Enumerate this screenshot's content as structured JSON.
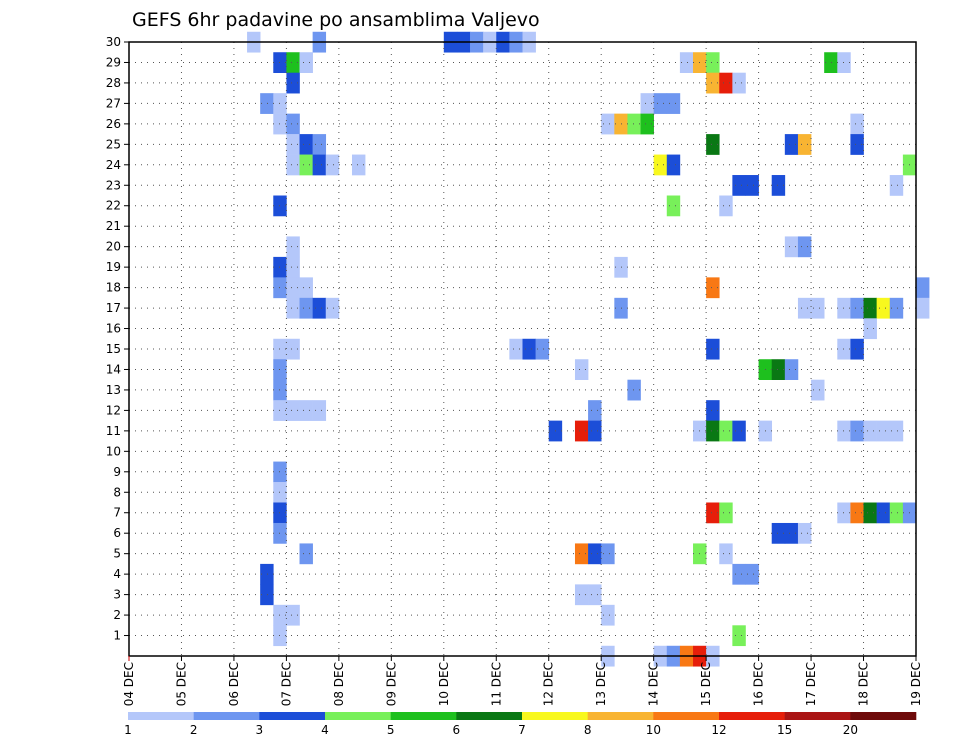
{
  "chart_data": {
    "type": "heatmap",
    "title": "GEFS 6hr padavine po ansamblima Valjevo",
    "y_labels": [
      "1",
      "2",
      "3",
      "4",
      "5",
      "6",
      "7",
      "8",
      "9",
      "10",
      "11",
      "12",
      "13",
      "14",
      "15",
      "16",
      "17",
      "18",
      "19",
      "20",
      "21",
      "22",
      "23",
      "24",
      "25",
      "26",
      "27",
      "28",
      "29",
      "30"
    ],
    "x_labels": [
      "04 DEC",
      "05 DEC",
      "06 DEC",
      "07 DEC",
      "08 DEC",
      "09 DEC",
      "10 DEC",
      "11 DEC",
      "12 DEC",
      "13 DEC",
      "14 DEC",
      "15 DEC",
      "16 DEC",
      "17 DEC",
      "18 DEC",
      "19 DEC"
    ],
    "x_range_days": [
      0,
      15
    ],
    "steps_per_day": 4,
    "y_range": [
      0,
      30
    ],
    "grid": "dotted",
    "legend": {
      "placement": "bottom",
      "thresholds": [
        "1",
        "2",
        "3",
        "4",
        "5",
        "6",
        "7",
        "8",
        "10",
        "12",
        "15",
        "20"
      ],
      "colors": [
        "#b4c7fa",
        "#6e96f0",
        "#1c4ed8",
        "#78f05a",
        "#1ec01e",
        "#0a7814",
        "#f8f81e",
        "#f8b432",
        "#f87814",
        "#e61e0a",
        "#aa1414",
        "#6e0a0a"
      ]
    },
    "cells": [
      [
        30,
        1,
        9
      ],
      [
        30,
        2,
        14
      ],
      [
        30,
        3,
        24
      ],
      [
        30,
        3,
        25
      ],
      [
        30,
        2,
        26
      ],
      [
        30,
        1,
        27
      ],
      [
        30,
        3,
        28
      ],
      [
        30,
        2,
        29
      ],
      [
        30,
        1,
        30
      ],
      [
        29,
        3,
        11
      ],
      [
        29,
        5,
        12
      ],
      [
        29,
        1,
        13
      ],
      [
        29,
        1,
        42
      ],
      [
        29,
        8,
        43
      ],
      [
        29,
        4,
        44
      ],
      [
        29,
        5,
        53
      ],
      [
        29,
        1,
        54
      ],
      [
        28,
        3,
        12
      ],
      [
        28,
        8,
        44
      ],
      [
        28,
        10,
        45
      ],
      [
        28,
        1,
        46
      ],
      [
        27,
        2,
        10
      ],
      [
        27,
        1,
        11
      ],
      [
        27,
        1,
        39
      ],
      [
        27,
        2,
        40
      ],
      [
        27,
        2,
        41
      ],
      [
        26,
        1,
        11
      ],
      [
        26,
        2,
        12
      ],
      [
        26,
        1,
        36
      ],
      [
        26,
        8,
        37
      ],
      [
        26,
        4,
        38
      ],
      [
        26,
        5,
        39
      ],
      [
        26,
        1,
        55
      ],
      [
        25,
        1,
        12
      ],
      [
        25,
        3,
        13
      ],
      [
        25,
        2,
        14
      ],
      [
        25,
        6,
        44
      ],
      [
        25,
        3,
        50
      ],
      [
        25,
        8,
        51
      ],
      [
        25,
        3,
        55
      ],
      [
        24,
        1,
        12
      ],
      [
        24,
        4,
        13
      ],
      [
        24,
        3,
        14
      ],
      [
        24,
        1,
        15
      ],
      [
        24,
        1,
        17
      ],
      [
        24,
        7,
        40
      ],
      [
        24,
        3,
        41
      ],
      [
        24,
        4,
        59
      ],
      [
        23,
        3,
        46
      ],
      [
        23,
        3,
        47
      ],
      [
        23,
        3,
        49
      ],
      [
        23,
        1,
        58
      ],
      [
        22,
        3,
        11
      ],
      [
        22,
        4,
        41
      ],
      [
        22,
        1,
        45
      ],
      [
        20,
        1,
        12
      ],
      [
        20,
        1,
        50
      ],
      [
        20,
        2,
        51
      ],
      [
        19,
        3,
        11
      ],
      [
        19,
        1,
        12
      ],
      [
        19,
        1,
        37
      ],
      [
        18,
        2,
        11
      ],
      [
        18,
        1,
        12
      ],
      [
        18,
        1,
        13
      ],
      [
        18,
        9,
        44
      ],
      [
        18,
        2,
        60
      ],
      [
        17,
        1,
        12
      ],
      [
        17,
        2,
        13
      ],
      [
        17,
        3,
        14
      ],
      [
        17,
        1,
        15
      ],
      [
        17,
        2,
        37
      ],
      [
        17,
        1,
        51
      ],
      [
        17,
        1,
        52
      ],
      [
        17,
        1,
        54
      ],
      [
        17,
        2,
        55
      ],
      [
        17,
        6,
        56
      ],
      [
        17,
        7,
        57
      ],
      [
        17,
        2,
        58
      ],
      [
        17,
        1,
        60
      ],
      [
        16,
        1,
        56
      ],
      [
        15,
        1,
        11
      ],
      [
        15,
        1,
        12
      ],
      [
        15,
        1,
        29
      ],
      [
        15,
        3,
        30
      ],
      [
        15,
        2,
        31
      ],
      [
        15,
        3,
        44
      ],
      [
        15,
        1,
        54
      ],
      [
        15,
        3,
        55
      ],
      [
        14,
        2,
        11
      ],
      [
        14,
        1,
        34
      ],
      [
        14,
        5,
        48
      ],
      [
        14,
        6,
        49
      ],
      [
        14,
        2,
        50
      ],
      [
        13,
        2,
        11
      ],
      [
        13,
        2,
        38
      ],
      [
        13,
        1,
        52
      ],
      [
        12,
        1,
        12
      ],
      [
        12,
        1,
        11
      ],
      [
        12,
        1,
        13
      ],
      [
        12,
        1,
        14
      ],
      [
        12,
        2,
        35
      ],
      [
        12,
        3,
        44
      ],
      [
        11,
        3,
        32
      ],
      [
        11,
        10,
        34
      ],
      [
        11,
        3,
        35
      ],
      [
        11,
        1,
        43
      ],
      [
        11,
        6,
        44
      ],
      [
        11,
        4,
        45
      ],
      [
        11,
        3,
        46
      ],
      [
        11,
        1,
        48
      ],
      [
        11,
        1,
        54
      ],
      [
        11,
        2,
        55
      ],
      [
        11,
        1,
        56
      ],
      [
        11,
        1,
        57
      ],
      [
        11,
        1,
        58
      ],
      [
        9,
        2,
        11
      ],
      [
        8,
        1,
        11
      ],
      [
        7,
        3,
        11
      ],
      [
        7,
        10,
        44
      ],
      [
        7,
        4,
        45
      ],
      [
        7,
        1,
        54
      ],
      [
        7,
        9,
        55
      ],
      [
        7,
        6,
        56
      ],
      [
        7,
        3,
        57
      ],
      [
        7,
        4,
        58
      ],
      [
        7,
        2,
        59
      ],
      [
        6,
        2,
        11
      ],
      [
        6,
        3,
        49
      ],
      [
        6,
        3,
        50
      ],
      [
        6,
        1,
        51
      ],
      [
        5,
        2,
        13
      ],
      [
        5,
        9,
        34
      ],
      [
        5,
        3,
        35
      ],
      [
        5,
        2,
        36
      ],
      [
        5,
        4,
        43
      ],
      [
        5,
        1,
        45
      ],
      [
        4,
        3,
        10
      ],
      [
        4,
        2,
        46
      ],
      [
        4,
        2,
        47
      ],
      [
        3,
        3,
        10
      ],
      [
        3,
        1,
        34
      ],
      [
        3,
        1,
        35
      ],
      [
        2,
        1,
        11
      ],
      [
        2,
        1,
        12
      ],
      [
        2,
        1,
        36
      ],
      [
        1,
        1,
        11
      ],
      [
        1,
        4,
        46
      ],
      [
        0,
        1,
        36
      ],
      [
        0,
        1,
        40
      ],
      [
        0,
        2,
        41
      ],
      [
        0,
        9,
        42
      ],
      [
        0,
        10,
        43
      ],
      [
        0,
        1,
        44
      ]
    ]
  }
}
